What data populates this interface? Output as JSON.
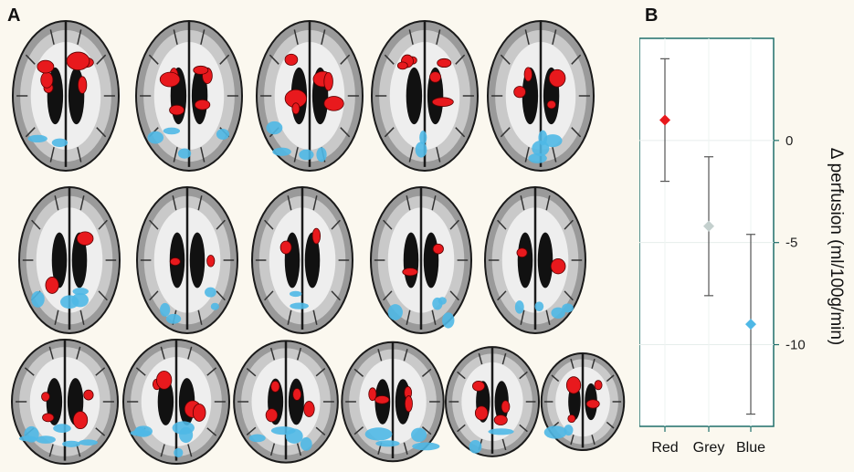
{
  "panels": {
    "a": "A",
    "b": "B"
  },
  "brain_rows": [
    [
      {
        "red": "high",
        "blue": "low"
      },
      {
        "red": "high",
        "blue": "medium"
      },
      {
        "red": "high",
        "blue": "medium"
      },
      {
        "red": "high",
        "blue": "low"
      },
      {
        "red": "medium",
        "blue": "medium"
      }
    ],
    [
      {
        "red": "low",
        "blue": "medium"
      },
      {
        "red": "low",
        "blue": "medium"
      },
      {
        "red": "low",
        "blue": "low"
      },
      {
        "red": "low",
        "blue": "medium"
      },
      {
        "red": "low",
        "blue": "medium"
      }
    ],
    [
      {
        "red": "medium",
        "blue": "high"
      },
      {
        "red": "medium",
        "blue": "high"
      },
      {
        "red": "medium",
        "blue": "medium"
      },
      {
        "red": "medium",
        "blue": "medium"
      },
      {
        "red": "medium",
        "blue": "low"
      },
      {
        "red": "medium",
        "blue": "low"
      }
    ]
  ],
  "colors": {
    "red": "#e8191d",
    "grey": "#c4d0ce",
    "blue": "#4fb8e6",
    "brain_dark": "#111111",
    "brain_white": "#eeeeee"
  },
  "chart_data": {
    "type": "scatter",
    "title": "",
    "xlabel": "",
    "ylabel": "Δ perfusion (ml/100g/min)",
    "categories": [
      "Red",
      "Grey",
      "Blue"
    ],
    "series": [
      {
        "category": "Red",
        "mean": 1.0,
        "lower": -2.0,
        "upper": 4.0,
        "color": "#e8191d"
      },
      {
        "category": "Grey",
        "mean": -4.2,
        "lower": -7.6,
        "upper": -0.8,
        "color": "#c4d0ce"
      },
      {
        "category": "Blue",
        "mean": -9.0,
        "lower": -13.4,
        "upper": -4.6,
        "color": "#4fb8e6"
      }
    ],
    "yticks": [
      0,
      -5,
      -10
    ],
    "ylim": [
      -14,
      5
    ],
    "grid": true,
    "axis_position": "right"
  }
}
